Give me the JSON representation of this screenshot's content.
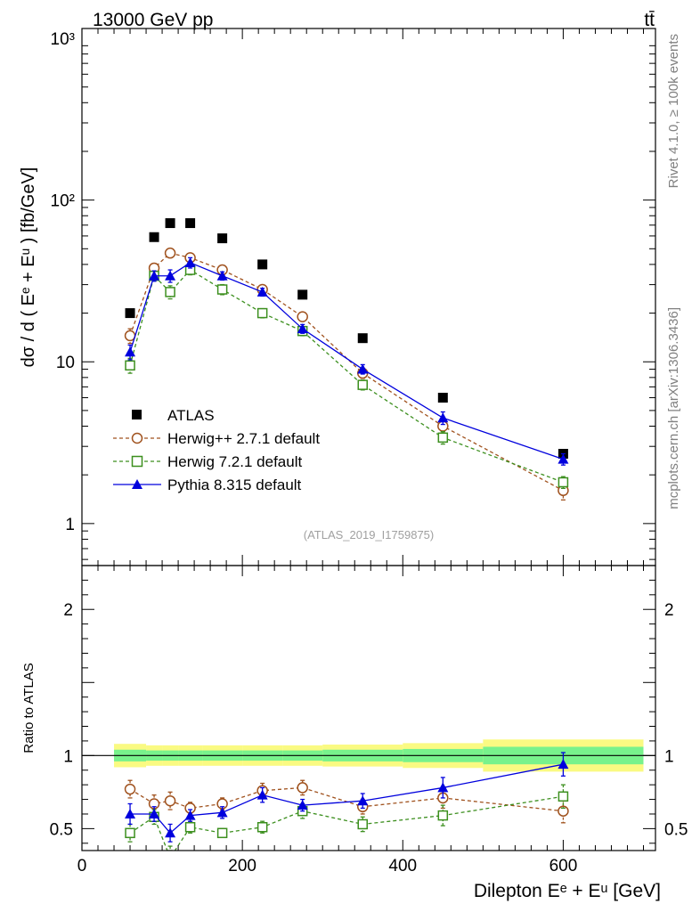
{
  "header": {
    "left": "13000 GeV pp",
    "right": "tt̄"
  },
  "side_text": {
    "top": "Rivet 4.1.0, ≥ 100k events",
    "bottom": "mcplots.cern.ch [arXiv:1306.3436]"
  },
  "watermark": "(ATLAS_2019_I1759875)",
  "colors": {
    "atlas": "#000000",
    "herwigpp": "#a0521e",
    "herwig7": "#3c8f1e",
    "pythia": "#0000dd",
    "band_inner": "#78f28c",
    "band_outer": "#fafa82"
  },
  "chart_data": [
    {
      "type": "scatter",
      "title": "",
      "ylabel": "dσ / d ( Eᵉ + Eᵘ ) [fb/GeV]",
      "yscale": "log",
      "xlim": [
        0,
        715
      ],
      "ylim": [
        0.55,
        1150
      ],
      "y_ticks": [
        {
          "value": 1,
          "label": "1"
        },
        {
          "value": 10,
          "label": "10"
        },
        {
          "value": 100,
          "label": "10²"
        },
        {
          "value": 1000,
          "label": "10³"
        }
      ],
      "x": [
        60,
        90,
        110,
        135,
        175,
        225,
        275,
        350,
        450,
        600
      ],
      "series": [
        {
          "name": "ATLAS",
          "key": "atlas",
          "marker": "square-filled",
          "values": [
            20,
            59,
            72,
            72,
            58,
            40,
            26,
            14,
            6,
            2.7
          ]
        },
        {
          "name": "Herwig++ 2.7.1 default",
          "key": "herwigpp",
          "marker": "circle-open",
          "line": "dashed",
          "values": [
            14.5,
            38,
            47,
            44,
            37,
            28,
            19,
            8.5,
            4.0,
            1.6
          ],
          "errors": [
            1.5,
            2.5,
            3,
            2.5,
            2,
            1.5,
            1.2,
            0.6,
            0.3,
            0.2
          ]
        },
        {
          "name": "Herwig 7.2.1 default",
          "key": "herwig7",
          "marker": "square-open",
          "line": "dashed",
          "values": [
            9.5,
            34,
            27,
            37,
            28,
            20,
            15.5,
            7.2,
            3.4,
            1.8
          ],
          "errors": [
            1,
            2.5,
            2.5,
            2.5,
            2,
            1.3,
            1,
            0.5,
            0.3,
            0.15
          ]
        },
        {
          "name": "Pythia 8.315 default",
          "key": "pythia",
          "marker": "triangle-filled",
          "line": "solid",
          "values": [
            11.5,
            34,
            34,
            41,
            34,
            27,
            16,
            9.0,
            4.5,
            2.5
          ],
          "errors": [
            1.2,
            2.5,
            3,
            3,
            2,
            1.5,
            1,
            0.6,
            0.4,
            0.2
          ]
        }
      ]
    },
    {
      "type": "scatter",
      "title": "",
      "xlabel": "Dilepton Eᵉ + Eᵘ [GeV]",
      "ylabel": "Ratio to ATLAS",
      "xlim": [
        0,
        715
      ],
      "ylim": [
        0.35,
        2.3
      ],
      "x_ticks": [
        {
          "value": 0,
          "label": "0"
        },
        {
          "value": 200,
          "label": "200"
        },
        {
          "value": 400,
          "label": "400"
        },
        {
          "value": 600,
          "label": "600"
        }
      ],
      "y_ticks": [
        {
          "value": 0.5,
          "label": "0.5"
        },
        {
          "value": 1,
          "label": "1"
        },
        {
          "value": 2,
          "label": "2"
        }
      ],
      "bands": [
        {
          "xmin": 40,
          "xmax": 80,
          "inner": 0.04,
          "outer": 0.08
        },
        {
          "xmin": 80,
          "xmax": 100,
          "inner": 0.035,
          "outer": 0.07
        },
        {
          "xmin": 100,
          "xmax": 120,
          "inner": 0.035,
          "outer": 0.07
        },
        {
          "xmin": 120,
          "xmax": 150,
          "inner": 0.035,
          "outer": 0.07
        },
        {
          "xmin": 150,
          "xmax": 200,
          "inner": 0.035,
          "outer": 0.07
        },
        {
          "xmin": 200,
          "xmax": 250,
          "inner": 0.035,
          "outer": 0.07
        },
        {
          "xmin": 250,
          "xmax": 300,
          "inner": 0.035,
          "outer": 0.07
        },
        {
          "xmin": 300,
          "xmax": 400,
          "inner": 0.04,
          "outer": 0.075
        },
        {
          "xmin": 400,
          "xmax": 500,
          "inner": 0.045,
          "outer": 0.085
        },
        {
          "xmin": 500,
          "xmax": 700,
          "inner": 0.06,
          "outer": 0.11
        }
      ],
      "x": [
        60,
        90,
        110,
        135,
        175,
        225,
        275,
        350,
        450,
        600
      ],
      "series": [
        {
          "name": "Herwig++ 2.7.1 default",
          "key": "herwigpp",
          "marker": "circle-open",
          "line": "dashed",
          "values": [
            0.77,
            0.67,
            0.69,
            0.64,
            0.67,
            0.76,
            0.78,
            0.65,
            0.71,
            0.62
          ],
          "errors": [
            0.06,
            0.06,
            0.06,
            0.04,
            0.04,
            0.05,
            0.05,
            0.05,
            0.07,
            0.08
          ]
        },
        {
          "name": "Herwig 7.2.1 default",
          "key": "herwig7",
          "marker": "square-open",
          "line": "dashed",
          "values": [
            0.47,
            0.58,
            0.3,
            0.51,
            0.47,
            0.51,
            0.62,
            0.53,
            0.59,
            0.72
          ],
          "errors": [
            0.06,
            0.05,
            0.08,
            0.04,
            0.03,
            0.04,
            0.05,
            0.05,
            0.07,
            0.08
          ]
        },
        {
          "name": "Pythia 8.315 default",
          "key": "pythia",
          "marker": "triangle-filled",
          "line": "solid",
          "values": [
            0.6,
            0.6,
            0.47,
            0.59,
            0.61,
            0.73,
            0.66,
            0.69,
            0.78,
            0.94
          ],
          "errors": [
            0.07,
            0.05,
            0.06,
            0.04,
            0.04,
            0.05,
            0.04,
            0.05,
            0.07,
            0.08
          ]
        }
      ]
    }
  ]
}
